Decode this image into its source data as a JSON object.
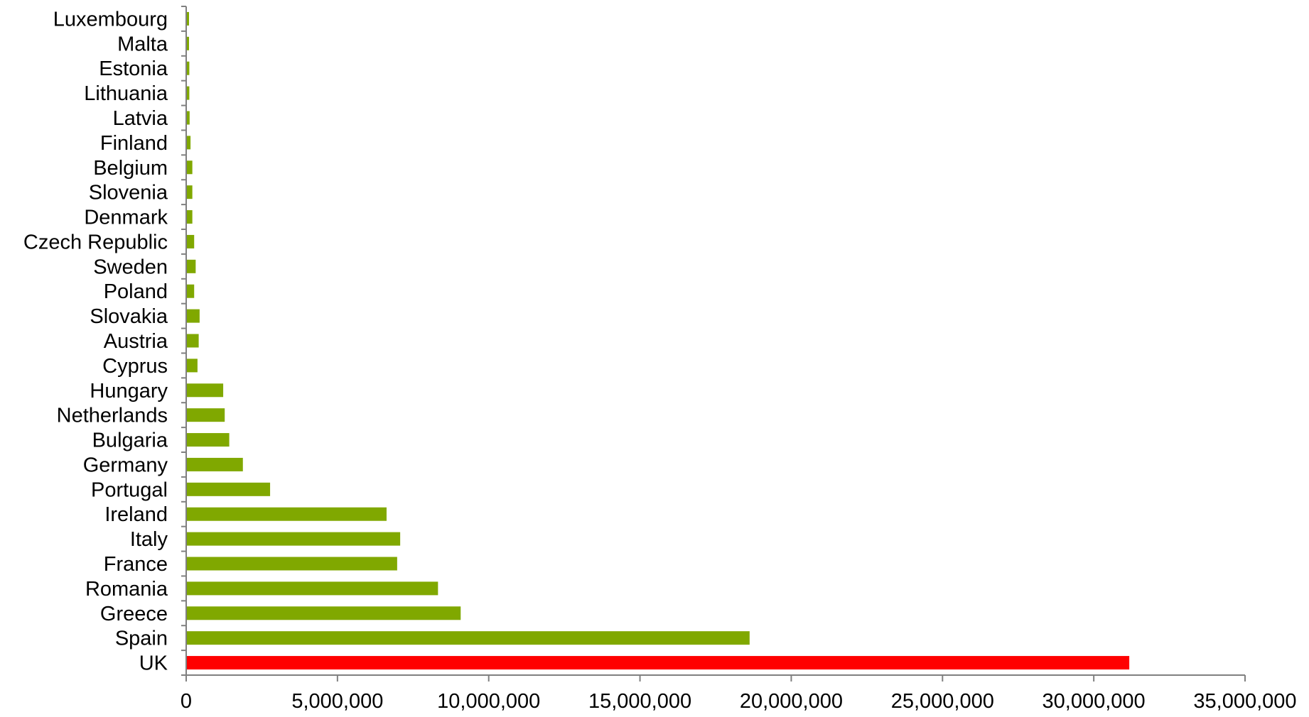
{
  "chart_data": {
    "type": "bar",
    "orientation": "horizontal",
    "title": "",
    "xlabel": "",
    "ylabel": "",
    "categories": [
      "Luxembourg",
      "Malta",
      "Estonia",
      "Lithuania",
      "Latvia",
      "Finland",
      "Belgium",
      "Slovenia",
      "Denmark",
      "Czech Republic",
      "Sweden",
      "Poland",
      "Slovakia",
      "Austria",
      "Cyprus",
      "Hungary",
      "Netherlands",
      "Bulgaria",
      "Germany",
      "Portugal",
      "Ireland",
      "Italy",
      "France",
      "Romania",
      "Greece",
      "Spain",
      "UK"
    ],
    "values": [
      50000,
      50000,
      80000,
      80000,
      90000,
      120000,
      180000,
      180000,
      180000,
      240000,
      290000,
      240000,
      420000,
      390000,
      350000,
      1200000,
      1250000,
      1400000,
      1850000,
      2750000,
      6600000,
      7050000,
      6950000,
      8300000,
      9050000,
      18600000,
      31150000
    ],
    "bar_colors": [
      "#80a800",
      "#80a800",
      "#80a800",
      "#80a800",
      "#80a800",
      "#80a800",
      "#80a800",
      "#80a800",
      "#80a800",
      "#80a800",
      "#80a800",
      "#80a800",
      "#80a800",
      "#80a800",
      "#80a800",
      "#80a800",
      "#80a800",
      "#80a800",
      "#80a800",
      "#80a800",
      "#80a800",
      "#80a800",
      "#80a800",
      "#80a800",
      "#80a800",
      "#80a800",
      "#ff0000"
    ],
    "xlim": [
      0,
      35000000
    ],
    "x_ticks": [
      0,
      5000000,
      10000000,
      15000000,
      20000000,
      25000000,
      30000000,
      35000000
    ],
    "x_tick_labels": [
      "0",
      "5,000,000",
      "10,000,000",
      "15,000,000",
      "20,000,000",
      "25,000,000",
      "30,000,000",
      "35,000,000"
    ],
    "grid": false,
    "legend": "none",
    "axis_color": "#808080"
  }
}
